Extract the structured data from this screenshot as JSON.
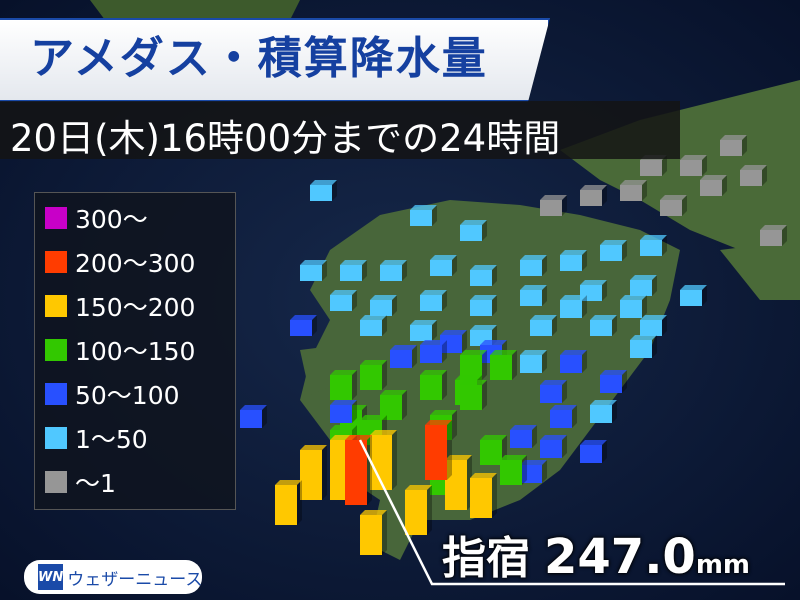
{
  "header": {
    "title": "アメダス・積算降水量",
    "subtitle": "20日(木)16時00分までの24時間"
  },
  "legend": {
    "items": [
      {
        "label": "300〜",
        "color": "#c800c8"
      },
      {
        "label": "200〜300",
        "color": "#ff3c00"
      },
      {
        "label": "150〜200",
        "color": "#ffc800"
      },
      {
        "label": "100〜150",
        "color": "#32c800"
      },
      {
        "label": "50〜100",
        "color": "#2850ff"
      },
      {
        "label": "1〜50",
        "color": "#50c8ff"
      },
      {
        "label": "〜1",
        "color": "#969696"
      }
    ]
  },
  "callout": {
    "station": "指宿",
    "value": "247.0",
    "unit": "mm"
  },
  "logo": {
    "mark": "WN",
    "text": "ウェザーニュース"
  }
}
